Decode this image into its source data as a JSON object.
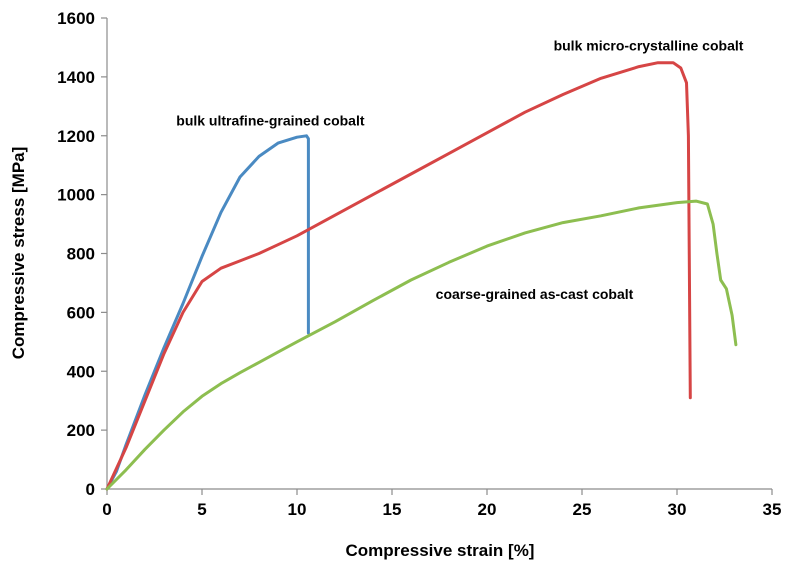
{
  "chart_data": {
    "type": "line",
    "title": "",
    "xlabel": "Compressive strain [%]",
    "ylabel": "Compressive stress [MPa]",
    "xlim": [
      0,
      35
    ],
    "ylim": [
      0,
      1600
    ],
    "xticks": [
      0,
      5,
      10,
      15,
      20,
      25,
      30,
      35
    ],
    "yticks": [
      0,
      200,
      400,
      600,
      800,
      1000,
      1200,
      1400,
      1600
    ],
    "grid": false,
    "legend": "none",
    "series": [
      {
        "name": "bulk ultrafine-grained cobalt",
        "color": "#4a8ac2",
        "x": [
          0,
          0.5,
          1,
          2,
          3,
          4,
          5,
          6,
          7,
          8,
          9,
          10,
          10.5,
          10.6,
          10.6
        ],
        "y": [
          0,
          60,
          150,
          320,
          480,
          630,
          790,
          940,
          1060,
          1130,
          1175,
          1195,
          1200,
          1190,
          530
        ]
      },
      {
        "name": "bulk micro-crystalline cobalt",
        "color": "#d64545",
        "x": [
          0,
          1,
          2,
          3,
          4,
          5,
          6,
          7,
          8,
          9,
          10,
          12,
          14,
          16,
          18,
          20,
          22,
          24,
          26,
          28,
          29,
          29.8,
          30.2,
          30.5,
          30.6,
          30.7
        ],
        "y": [
          0,
          140,
          300,
          460,
          600,
          705,
          750,
          775,
          800,
          830,
          860,
          930,
          1000,
          1070,
          1140,
          1210,
          1280,
          1340,
          1395,
          1435,
          1448,
          1448,
          1430,
          1380,
          1200,
          310
        ]
      },
      {
        "name": "coarse-grained as-cast cobalt",
        "color": "#8dbe50",
        "x": [
          0,
          1,
          2,
          3,
          4,
          5,
          6,
          7,
          8,
          9,
          10,
          12,
          14,
          16,
          18,
          20,
          22,
          24,
          26,
          28,
          30,
          31,
          31.6,
          31.9,
          32.1,
          32.3,
          32.6,
          32.9,
          33.1
        ],
        "y": [
          0,
          65,
          135,
          200,
          262,
          315,
          358,
          395,
          430,
          465,
          500,
          568,
          640,
          710,
          770,
          825,
          870,
          905,
          928,
          955,
          973,
          978,
          968,
          900,
          800,
          710,
          680,
          590,
          490
        ]
      }
    ],
    "annotations": [
      {
        "text": "bulk micro-crystalline cobalt",
        "x": 28.5,
        "y": 1490
      },
      {
        "text": "bulk ultrafine-grained cobalt",
        "x": 8.6,
        "y": 1235
      },
      {
        "text": "coarse-grained as-cast cobalt",
        "x": 22.5,
        "y": 645
      }
    ]
  }
}
